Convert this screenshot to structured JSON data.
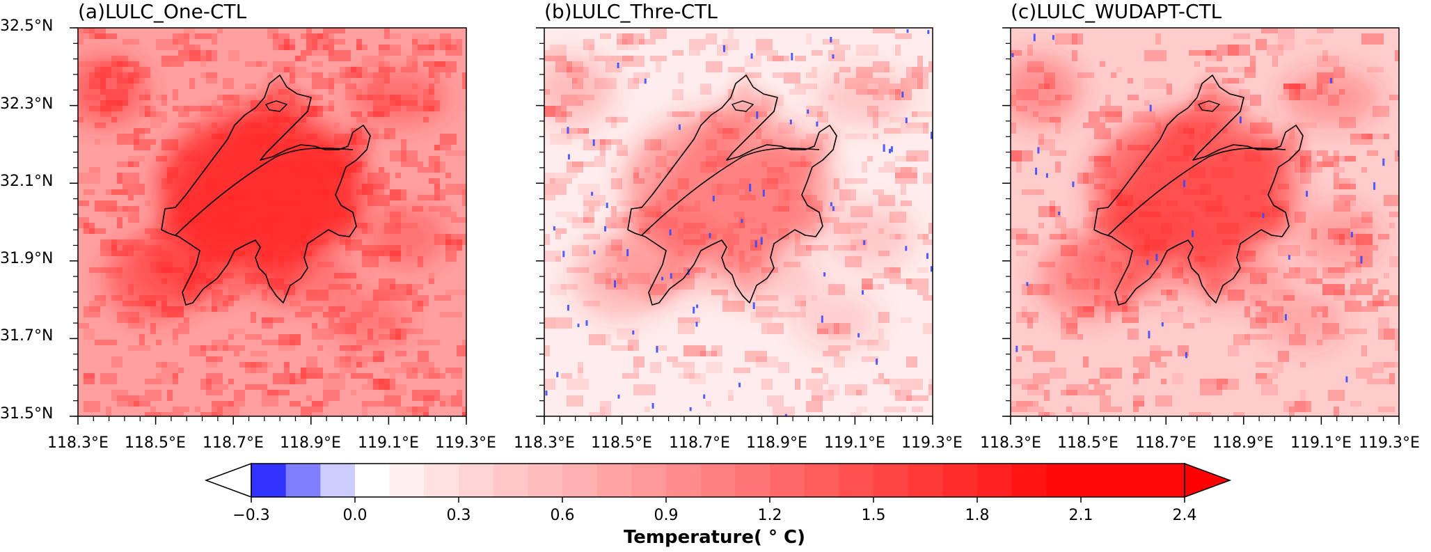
{
  "panels": [
    {
      "id": "a",
      "title": "(a)LULC_One-CTL",
      "intensity": 1.0
    },
    {
      "id": "b",
      "title": "(b)LULC_Thre-CTL",
      "intensity": 0.45
    },
    {
      "id": "c",
      "title": "(c)LULC_WUDAPT-CTL",
      "intensity": 0.7
    }
  ],
  "lat_ticks": [
    "32.5°N",
    "32.3°N",
    "32.1°N",
    "31.9°N",
    "31.7°N",
    "31.5°N"
  ],
  "lon_ticks": [
    "118.3°E",
    "118.5°E",
    "118.7°E",
    "118.9°E",
    "119.1°E",
    "119.3°E"
  ],
  "colorbar": {
    "title": "Temperature( ° C)",
    "tick_labels": [
      "−0.3",
      "0.0",
      "0.3",
      "0.6",
      "0.9",
      "1.2",
      "1.5",
      "1.8",
      "2.1",
      "2.4"
    ],
    "levels": [
      -0.3,
      -0.2,
      -0.1,
      0.0,
      0.1,
      0.2,
      0.3,
      0.4,
      0.5,
      0.6,
      0.7,
      0.8,
      0.9,
      1.0,
      1.1,
      1.2,
      1.3,
      1.4,
      1.5,
      1.6,
      1.7,
      1.8,
      1.9,
      2.0,
      2.1,
      2.2,
      2.3,
      2.4
    ],
    "colors": [
      "#3333ff",
      "#8080ff",
      "#ccccff",
      "#ffffff",
      "#fff0f0",
      "#ffe1e1",
      "#ffd4d4",
      "#ffc8c8",
      "#ffbcbc",
      "#ffb0b0",
      "#ffa4a4",
      "#ff9898",
      "#ff8c8c",
      "#ff8080",
      "#ff7474",
      "#ff6868",
      "#ff5c5c",
      "#ff5050",
      "#ff4444",
      "#ff3838",
      "#ff2c2c",
      "#ff2020",
      "#ff1414",
      "#ff0808",
      "#ff0000"
    ],
    "extend": "both"
  }
}
